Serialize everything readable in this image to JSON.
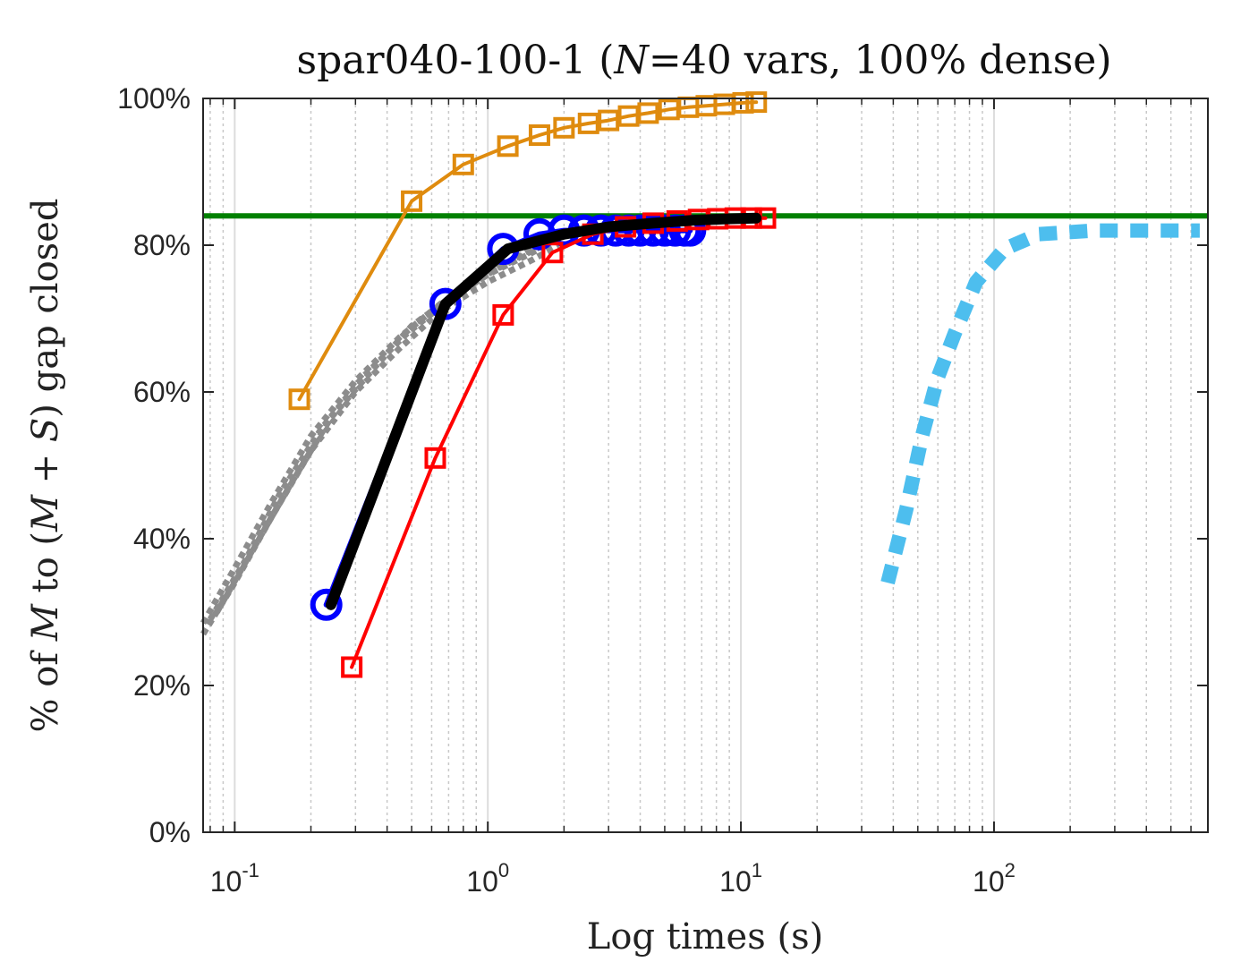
{
  "chart_data": {
    "type": "line",
    "title": "spar040-100-1 (N=40 vars, 100% dense)",
    "title_parts": {
      "before": "spar040-100-1 (",
      "italic": "N",
      "after": "=40 vars, 100% dense)"
    },
    "xlabel": "Log times (s)",
    "ylabel_parts": {
      "before": "% of ",
      "m1": "M",
      "mid": " to (",
      "m2": "M",
      "plus": " + ",
      "s": "S",
      "after": ") gap closed"
    },
    "x_scale": "log",
    "xlim": [
      0.075,
      700
    ],
    "ylim": [
      0,
      100
    ],
    "x_ticks": [
      {
        "base": "10",
        "exp": "-1",
        "value": 0.1
      },
      {
        "base": "10",
        "exp": "0",
        "value": 1
      },
      {
        "base": "10",
        "exp": "1",
        "value": 10
      },
      {
        "base": "10",
        "exp": "2",
        "value": 100
      }
    ],
    "y_ticks": [
      {
        "label": "0%",
        "value": 0
      },
      {
        "label": "20%",
        "value": 20
      },
      {
        "label": "40%",
        "value": 40
      },
      {
        "label": "60%",
        "value": 60
      },
      {
        "label": "80%",
        "value": 80
      },
      {
        "label": "100%",
        "value": 100
      }
    ],
    "grid": true,
    "hline": {
      "y": 84,
      "color": "#008000"
    },
    "series": [
      {
        "color": "#8c8c8c",
        "style": "dotted",
        "marker": "none",
        "width": 7,
        "x": [
          0.075,
          0.1,
          0.14,
          0.2,
          0.3,
          0.45,
          0.65,
          1.0,
          1.5,
          1.9
        ],
        "y": [
          27,
          34,
          43,
          52,
          60,
          66,
          71,
          75,
          78,
          80
        ]
      },
      {
        "color": "#8c8c8c",
        "style": "dotted",
        "marker": "none",
        "width": 7,
        "x": [
          0.075,
          0.1,
          0.14,
          0.2,
          0.3,
          0.45,
          0.65,
          1.0,
          1.5,
          1.9
        ],
        "y": [
          28.5,
          36,
          45,
          54,
          61.5,
          67.5,
          72,
          76,
          79,
          81
        ]
      },
      {
        "color": "#8c8c8c",
        "style": "dotted",
        "marker": "none",
        "width": 7,
        "x": [
          0.08,
          0.11,
          0.15,
          0.22,
          0.32,
          0.48,
          0.7,
          1.05,
          1.55,
          2.0
        ],
        "y": [
          29,
          37,
          46,
          55,
          62,
          68,
          72.5,
          76.5,
          79.5,
          81.5
        ]
      },
      {
        "color": "#8c8c8c",
        "style": "dotted",
        "marker": "none",
        "width": 7,
        "x": [
          0.085,
          0.12,
          0.17,
          0.24,
          0.35,
          0.5,
          0.72,
          1.1,
          1.6,
          2.1
        ],
        "y": [
          30,
          39,
          48,
          56.5,
          63,
          69,
          73,
          77,
          80,
          82
        ]
      },
      {
        "color": "#df8b0e",
        "style": "solid",
        "marker": "square",
        "width": 4,
        "x": [
          0.18,
          0.5,
          0.8,
          1.2,
          1.6,
          2.0,
          2.5,
          3.0,
          3.6,
          4.3,
          5.2,
          6.2,
          7.3,
          8.6,
          10.2,
          11.5
        ],
        "y": [
          59,
          86,
          91,
          93.5,
          95,
          96,
          96.6,
          97,
          97.6,
          98,
          98.5,
          98.8,
          99,
          99.2,
          99.4,
          99.5
        ]
      },
      {
        "color": "#0000ff",
        "style": "solid",
        "marker": "circle",
        "width": 6,
        "x": [
          0.23,
          0.68,
          1.15,
          1.6,
          2.0,
          2.4,
          2.8,
          3.2,
          3.6,
          4.0,
          4.5,
          5.0,
          5.5,
          6.0,
          6.3
        ],
        "y": [
          31,
          72,
          79.5,
          81.5,
          82,
          82,
          82,
          82,
          82,
          82,
          82,
          82,
          82,
          82,
          82
        ]
      },
      {
        "color": "#ff0000",
        "style": "solid",
        "marker": "square",
        "width": 4,
        "x": [
          0.29,
          0.62,
          1.15,
          1.8,
          2.6,
          3.5,
          4.5,
          5.6,
          6.8,
          8.1,
          9.5,
          11.0,
          12.5
        ],
        "y": [
          22.5,
          51,
          70.5,
          79,
          81.5,
          82.5,
          83,
          83.3,
          83.5,
          83.6,
          83.7,
          83.7,
          83.7
        ]
      },
      {
        "color": "#000000",
        "style": "solid",
        "marker": "none",
        "width": 12,
        "x": [
          0.24,
          0.68,
          1.2,
          2.0,
          3.0,
          4.5,
          6.5,
          9.0,
          11.5
        ],
        "y": [
          31,
          72,
          79.5,
          81.5,
          82.5,
          83,
          83.4,
          83.6,
          83.7
        ]
      },
      {
        "color": "#4dbeee",
        "style": "dotted",
        "marker": "none",
        "width": 16,
        "x": [
          38,
          45,
          52,
          60,
          70,
          85,
          110,
          150,
          250,
          400,
          650
        ],
        "y": [
          34,
          44,
          54,
          62,
          68,
          75,
          79.5,
          81.5,
          82,
          82,
          82
        ]
      }
    ]
  }
}
